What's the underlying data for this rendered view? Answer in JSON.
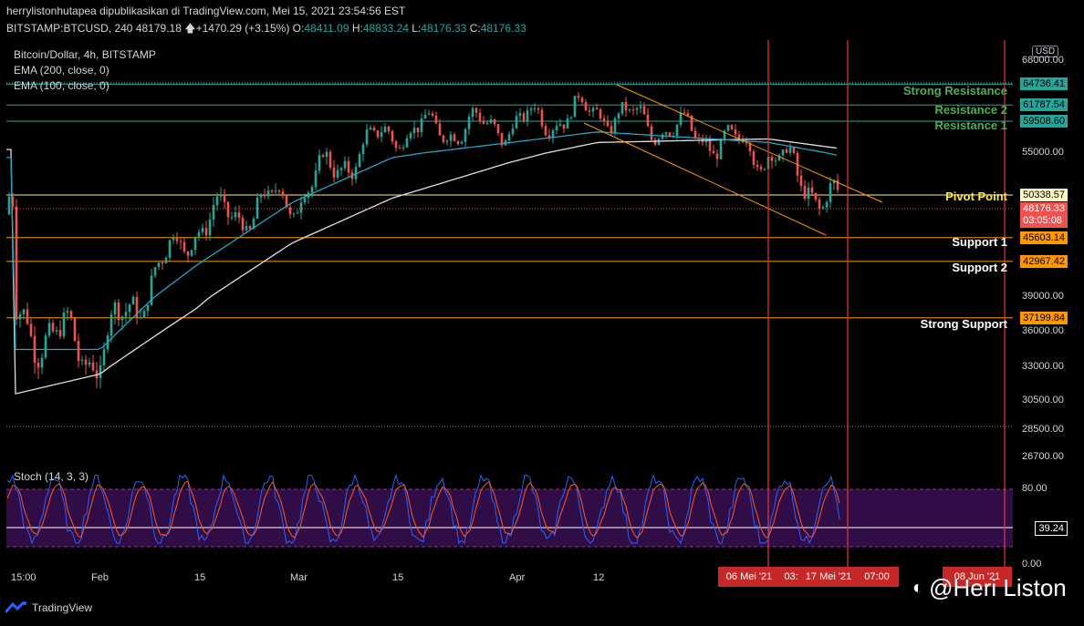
{
  "header": {
    "publisher_line": "herrylistonhutapea dipublikasikan di TradingView.com, Mei 15, 2021 23:54:56 EST",
    "symbol": "BITSTAMP:BTCUSD, 240",
    "last": "48179.18",
    "change": "+1470.29 (+3.15%)",
    "o_label": "O:",
    "o_val": "48411.09",
    "h_label": "H:",
    "h_val": "48833.24",
    "l_label": "L:",
    "l_val": "48176.33",
    "c_label": "C:",
    "c_val": "48176.33"
  },
  "legend": {
    "title": "Bitcoin/Dollar, 4h, BITSTAMP",
    "ema200": "EMA (200, close, 0)",
    "ema100": "EMA (100, close, 0)",
    "stoch": "Stoch (14, 3, 3)"
  },
  "currency": "USD",
  "levels": [
    {
      "name": "Strong Resistance",
      "price": "64736.41",
      "value": 64736.41,
      "line_color": "#26a69a",
      "tag_bg": "#26a69a",
      "label_color": "#4caf50"
    },
    {
      "name": "Resistance 2",
      "price": "61787.54",
      "value": 61787.54,
      "line_color": "#26a69a",
      "tag_bg": "#26a69a",
      "label_color": "#4caf50"
    },
    {
      "name": "Resistance 1",
      "price": "59508.60",
      "value": 59508.6,
      "line_color": "#26a69a",
      "tag_bg": "#26a69a",
      "label_color": "#4caf50"
    },
    {
      "name": "Pivot Point",
      "price": "50338.57",
      "value": 50338.57,
      "line_color": "#fff176",
      "tag_bg": "#fff9c4",
      "label_color": "#ffeb3b"
    },
    {
      "name": "Support 1",
      "price": "45603.14",
      "value": 45603.14,
      "line_color": "#ff9800",
      "tag_bg": "#ff9800",
      "label_color": "#ffffff"
    },
    {
      "name": "Support 2",
      "price": "42967.42",
      "value": 42967.42,
      "line_color": "#ff9800",
      "tag_bg": "#ff9800",
      "label_color": "#ffffff"
    },
    {
      "name": "Strong Support",
      "price": "37199.84",
      "value": 37199.84,
      "line_color": "#ff9800",
      "tag_bg": "#ff9800",
      "label_color": "#ffffff"
    }
  ],
  "current_price": {
    "price": "48176.33",
    "countdown": "03:05:08",
    "value": 48176.33
  },
  "price_axis": [
    {
      "label": "68000.00",
      "value": 68000
    },
    {
      "label": "55000.00",
      "value": 55000
    },
    {
      "label": "39000.00",
      "value": 39000
    },
    {
      "label": "36000.00",
      "value": 36000
    },
    {
      "label": "33000.00",
      "value": 33000
    },
    {
      "label": "30500.00",
      "value": 30500
    },
    {
      "label": "28500.00",
      "value": 28500
    },
    {
      "label": "26700.00",
      "value": 26700
    }
  ],
  "stoch_axis": [
    {
      "label": "80.00",
      "value": 80
    },
    {
      "label": "39.24",
      "value": 39.24
    },
    {
      "label": "0.00",
      "value": 0
    }
  ],
  "time_axis": [
    "15:00",
    "Feb",
    "15",
    "Mar",
    "15",
    "Apr",
    "12"
  ],
  "time_tags": [
    "06 Mei '21",
    "03:",
    "17 Mei '21",
    "07:00",
    "08 Jun '21"
  ],
  "footer": {
    "brand": "TradingView"
  },
  "watermark": "@Heri Liston",
  "chart_data": {
    "type": "line",
    "title": "Bitcoin/Dollar, 4h, BITSTAMP",
    "x": [
      "15:00",
      "Feb",
      "15",
      "Mar",
      "15",
      "Apr",
      "12",
      "06 Mei '21",
      "17 Mei '21"
    ],
    "series": [
      {
        "name": "BTCUSD",
        "values": [
          37000,
          34000,
          47000,
          50000,
          58000,
          59000,
          61000,
          55000,
          48176
        ]
      },
      {
        "name": "EMA (200, close, 0)",
        "values": [
          31000,
          32500,
          38000,
          45000,
          50000,
          54000,
          56500,
          57000,
          55500
        ]
      },
      {
        "name": "EMA (100, close, 0)",
        "values": [
          34500,
          34500,
          42500,
          49500,
          54500,
          56500,
          58000,
          56500,
          54500
        ]
      }
    ],
    "ylim": [
      26700,
      68000
    ],
    "stoch_ylim": [
      0,
      100
    ],
    "stoch_value": 39.24
  }
}
